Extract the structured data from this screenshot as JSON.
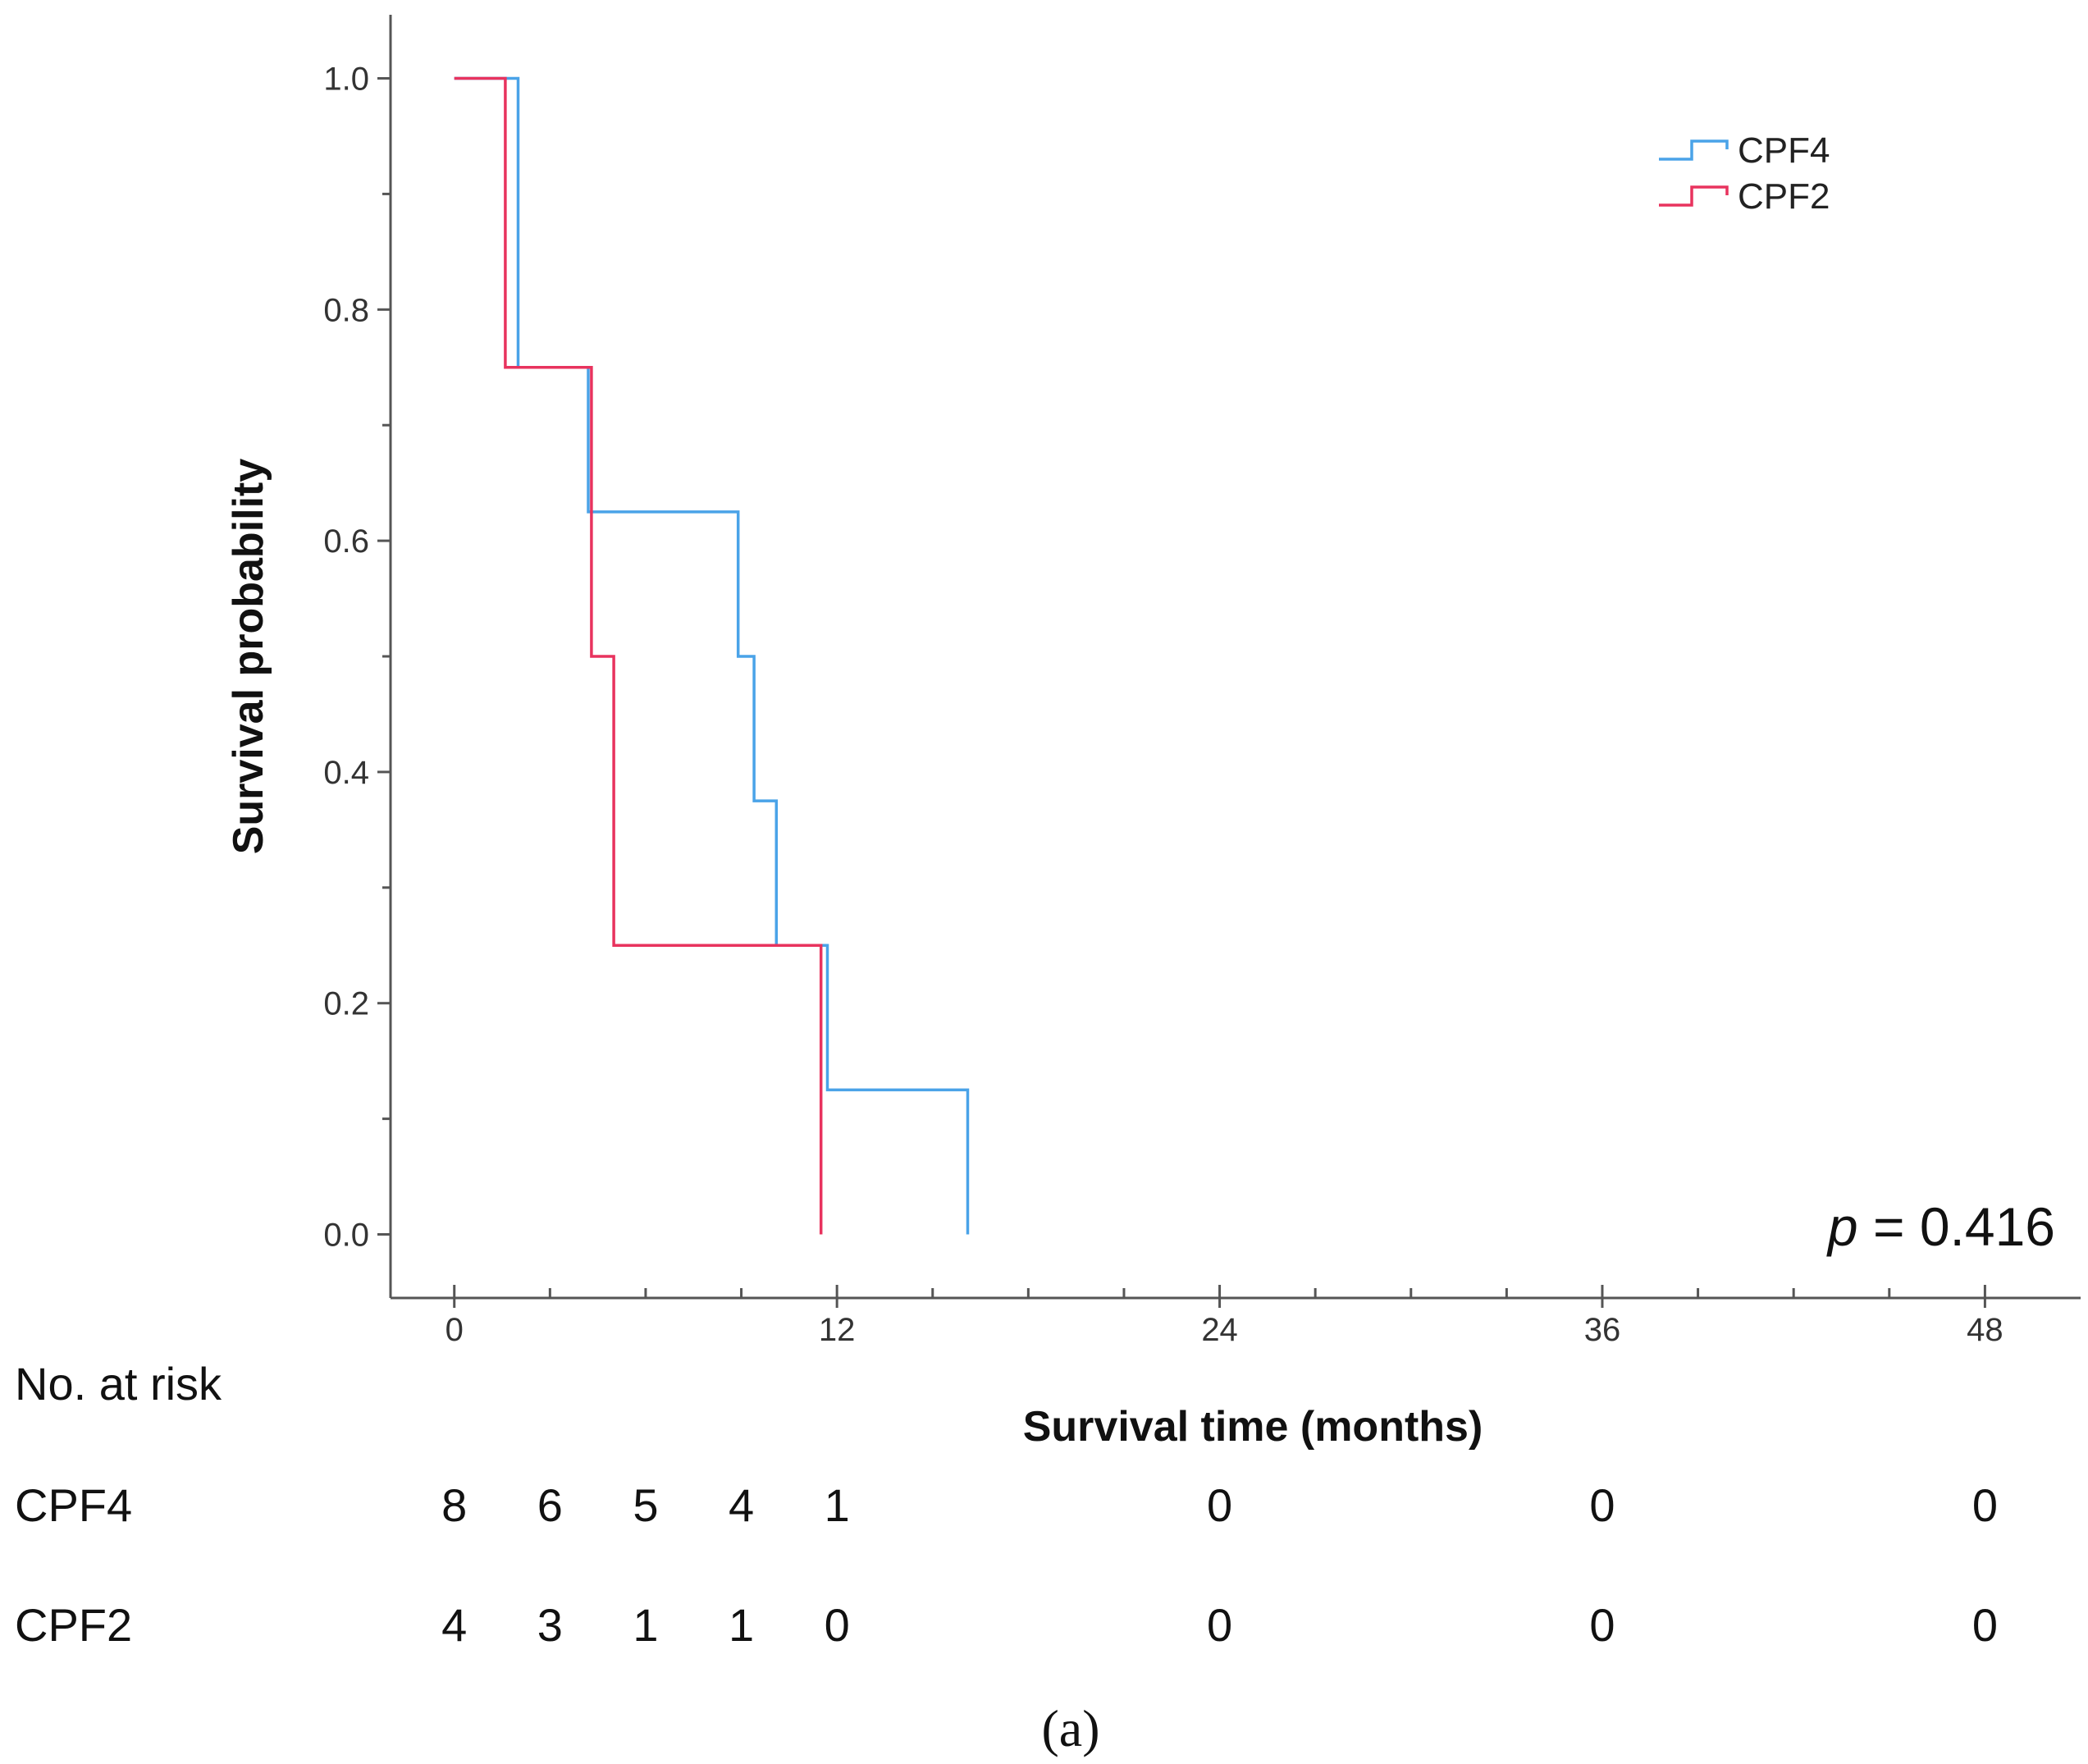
{
  "chart_data": {
    "type": "line",
    "subtype": "kaplan-meier-step",
    "xlabel": "Survival time (months)",
    "ylabel": "Survival probability",
    "xlim": [
      -2,
      51
    ],
    "ylim": [
      -0.055,
      1.055
    ],
    "x_ticks": [
      0,
      12,
      24,
      36,
      48
    ],
    "x_minor_ticks": [
      3,
      6,
      9,
      15,
      18,
      21,
      27,
      30,
      33,
      39,
      42,
      45
    ],
    "y_ticks": [
      0.0,
      0.2,
      0.4,
      0.6,
      0.8,
      1.0
    ],
    "y_tick_labels": [
      "0.0",
      "0.2",
      "0.4",
      "0.6",
      "0.8",
      "1.0"
    ],
    "y_minor_ticks": [
      0.1,
      0.3,
      0.5,
      0.7,
      0.9
    ],
    "legend_position": "top-right",
    "series": [
      {
        "name": "CPF4",
        "color": "#4aa3e8",
        "steps": [
          [
            0,
            1.0
          ],
          [
            2.0,
            0.75
          ],
          [
            4.2,
            0.625
          ],
          [
            8.9,
            0.5
          ],
          [
            9.4,
            0.375
          ],
          [
            10.1,
            0.25
          ],
          [
            11.7,
            0.125
          ],
          [
            16.1,
            0.0
          ]
        ]
      },
      {
        "name": "CPF2",
        "color": "#e8335e",
        "steps": [
          [
            0,
            1.0
          ],
          [
            1.6,
            0.75
          ],
          [
            4.3,
            0.5
          ],
          [
            5.0,
            0.25
          ],
          [
            11.5,
            0.0
          ]
        ]
      }
    ],
    "annotation": {
      "italic": "p",
      "rest": " = 0.416"
    },
    "risk_table": {
      "title": "No. at risk",
      "times": [
        0,
        3,
        6,
        9,
        12,
        24,
        36,
        48
      ],
      "rows": [
        {
          "label": "CPF4",
          "counts": [
            "8",
            "6",
            "5",
            "4",
            "1",
            "0",
            "0",
            "0"
          ]
        },
        {
          "label": "CPF2",
          "counts": [
            "4",
            "3",
            "1",
            "1",
            "0",
            "0",
            "0",
            "0"
          ]
        }
      ]
    },
    "caption": "(a)"
  }
}
